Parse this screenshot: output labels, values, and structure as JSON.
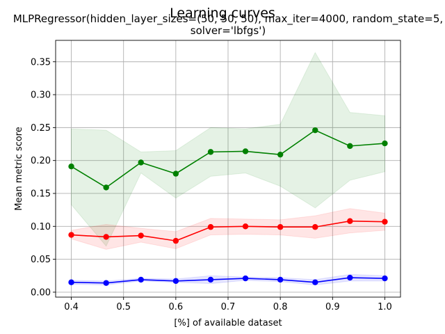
{
  "chart_data": {
    "type": "line",
    "suptitle": "Learning curves",
    "title_lines": [
      "MLPRegressor(hidden_layer_sizes=(50, 50, 50), max_iter=4000, random_state=5,",
      "solver='lbfgs')"
    ],
    "xlabel": "[%] of available dataset",
    "ylabel": "Mean metric score",
    "xlim": [
      0.37,
      1.03
    ],
    "ylim": [
      -0.0075,
      0.3825
    ],
    "grid": true,
    "x": [
      0.4,
      0.4667,
      0.5333,
      0.6,
      0.6667,
      0.7333,
      0.8,
      0.8667,
      0.9333,
      1.0
    ],
    "xticks": [
      "0.4",
      "0.5",
      "0.6",
      "0.7",
      "0.8",
      "0.9",
      "1.0"
    ],
    "xtick_values": [
      0.4,
      0.5,
      0.6,
      0.7,
      0.8,
      0.9,
      1.0
    ],
    "yticks": [
      "0.00",
      "0.05",
      "0.10",
      "0.15",
      "0.20",
      "0.25",
      "0.30",
      "0.35"
    ],
    "ytick_values": [
      0.0,
      0.05,
      0.1,
      0.15,
      0.2,
      0.25,
      0.3,
      0.35
    ],
    "series": [
      {
        "color": "#008000",
        "values": [
          0.191,
          0.159,
          0.197,
          0.18,
          0.213,
          0.214,
          0.209,
          0.246,
          0.222,
          0.226
        ],
        "band_upper": [
          0.248,
          0.246,
          0.213,
          0.215,
          0.25,
          0.248,
          0.255,
          0.364,
          0.273,
          0.268
        ],
        "band_lower": [
          0.133,
          0.07,
          0.181,
          0.143,
          0.176,
          0.181,
          0.161,
          0.128,
          0.17,
          0.183
        ]
      },
      {
        "color": "#ff0000",
        "values": [
          0.087,
          0.084,
          0.086,
          0.078,
          0.099,
          0.1,
          0.099,
          0.099,
          0.108,
          0.107
        ],
        "band_upper": [
          0.094,
          0.103,
          0.097,
          0.092,
          0.112,
          0.111,
          0.11,
          0.116,
          0.127,
          0.12
        ],
        "band_lower": [
          0.081,
          0.065,
          0.076,
          0.066,
          0.087,
          0.088,
          0.087,
          0.082,
          0.09,
          0.094
        ]
      },
      {
        "color": "#0000ff",
        "values": [
          0.015,
          0.014,
          0.019,
          0.017,
          0.019,
          0.021,
          0.019,
          0.015,
          0.022,
          0.021
        ],
        "band_upper": [
          0.018,
          0.017,
          0.021,
          0.02,
          0.025,
          0.023,
          0.022,
          0.019,
          0.027,
          0.025
        ],
        "band_lower": [
          0.012,
          0.011,
          0.017,
          0.015,
          0.013,
          0.018,
          0.016,
          0.011,
          0.017,
          0.017
        ]
      }
    ]
  }
}
